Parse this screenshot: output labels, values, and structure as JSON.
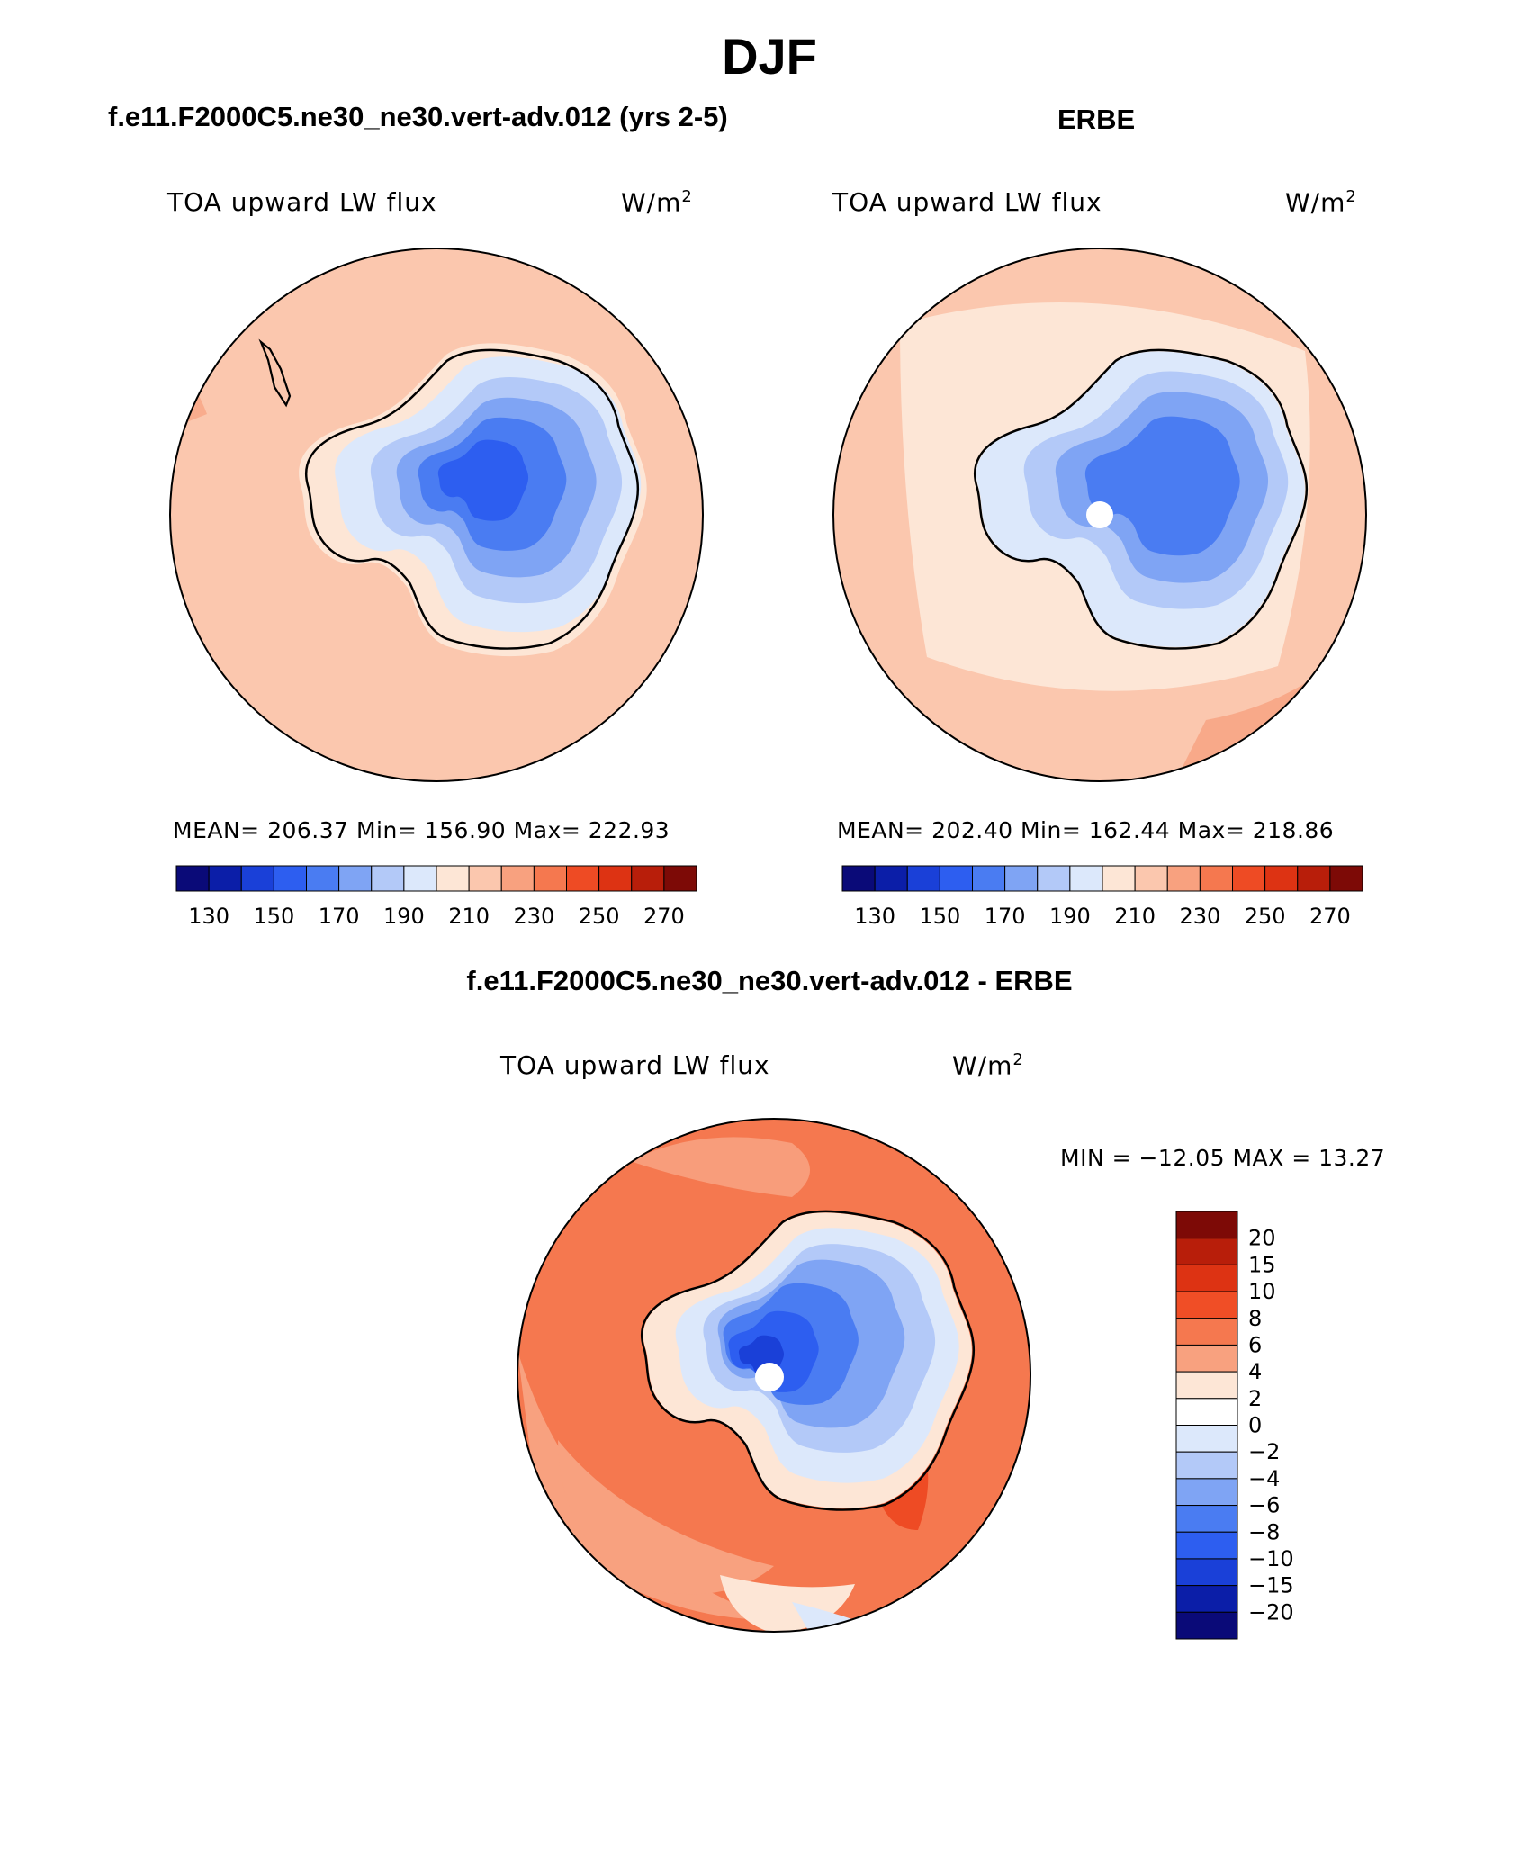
{
  "figure": {
    "title": "DJF"
  },
  "panels": {
    "model": {
      "title": "f.e11.F2000C5.ne30_ne30.vert-adv.012 (yrs 2-5)",
      "variable": "TOA upward LW flux",
      "units_base": "W/m",
      "units_exp": "2",
      "stats": "MEAN= 206.37   Min= 156.90   Max= 222.93"
    },
    "obs": {
      "title": "ERBE",
      "variable": "TOA upward LW flux",
      "units_base": "W/m",
      "units_exp": "2",
      "stats": "MEAN= 202.40   Min= 162.44   Max= 218.86"
    },
    "diff": {
      "title": "f.e11.F2000C5.ne30_ne30.vert-adv.012 - ERBE",
      "variable": "TOA upward LW flux",
      "units_base": "W/m",
      "units_exp": "2",
      "stats": "MIN = −12.05 MAX =   13.27"
    }
  },
  "chart_data": [
    {
      "type": "heatmap",
      "name": "model",
      "colorbar_levels": [
        130,
        150,
        170,
        190,
        210,
        230,
        250,
        270
      ],
      "colorbar_colors": [
        "#0a0a78",
        "#0b1ea8",
        "#1a40d8",
        "#2d5ef0",
        "#4a7cf2",
        "#7fa4f4",
        "#b3c9f8",
        "#dce8fb",
        "#fde6d6",
        "#fbc7ae",
        "#f8a17f",
        "#f5784f",
        "#ee4b24",
        "#dd3313",
        "#b81e0a",
        "#7d0a06"
      ]
    },
    {
      "type": "heatmap",
      "name": "obs",
      "colorbar_levels": [
        130,
        150,
        170,
        190,
        210,
        230,
        250,
        270
      ],
      "colorbar_colors": [
        "#0a0a78",
        "#0b1ea8",
        "#1a40d8",
        "#2d5ef0",
        "#4a7cf2",
        "#7fa4f4",
        "#b3c9f8",
        "#dce8fb",
        "#fde6d6",
        "#fbc7ae",
        "#f8a17f",
        "#f5784f",
        "#ee4b24",
        "#dd3313",
        "#b81e0a",
        "#7d0a06"
      ]
    },
    {
      "type": "heatmap",
      "name": "difference",
      "colorbar_levels": [
        "20",
        "15",
        "10",
        "8",
        "6",
        "4",
        "2",
        "0",
        "−2",
        "−4",
        "−6",
        "−8",
        "−10",
        "−15",
        "−20"
      ],
      "colorbar_colors": [
        "#7d0a06",
        "#b81e0a",
        "#dd3313",
        "#f04e26",
        "#f5784f",
        "#f8a17f",
        "#fde6d6",
        "#ffffff",
        "#dce8fb",
        "#b3c9f8",
        "#7fa4f4",
        "#4a7cf2",
        "#2d5ef0",
        "#1a40d8",
        "#0b1ea8",
        "#0a0a78"
      ]
    }
  ]
}
